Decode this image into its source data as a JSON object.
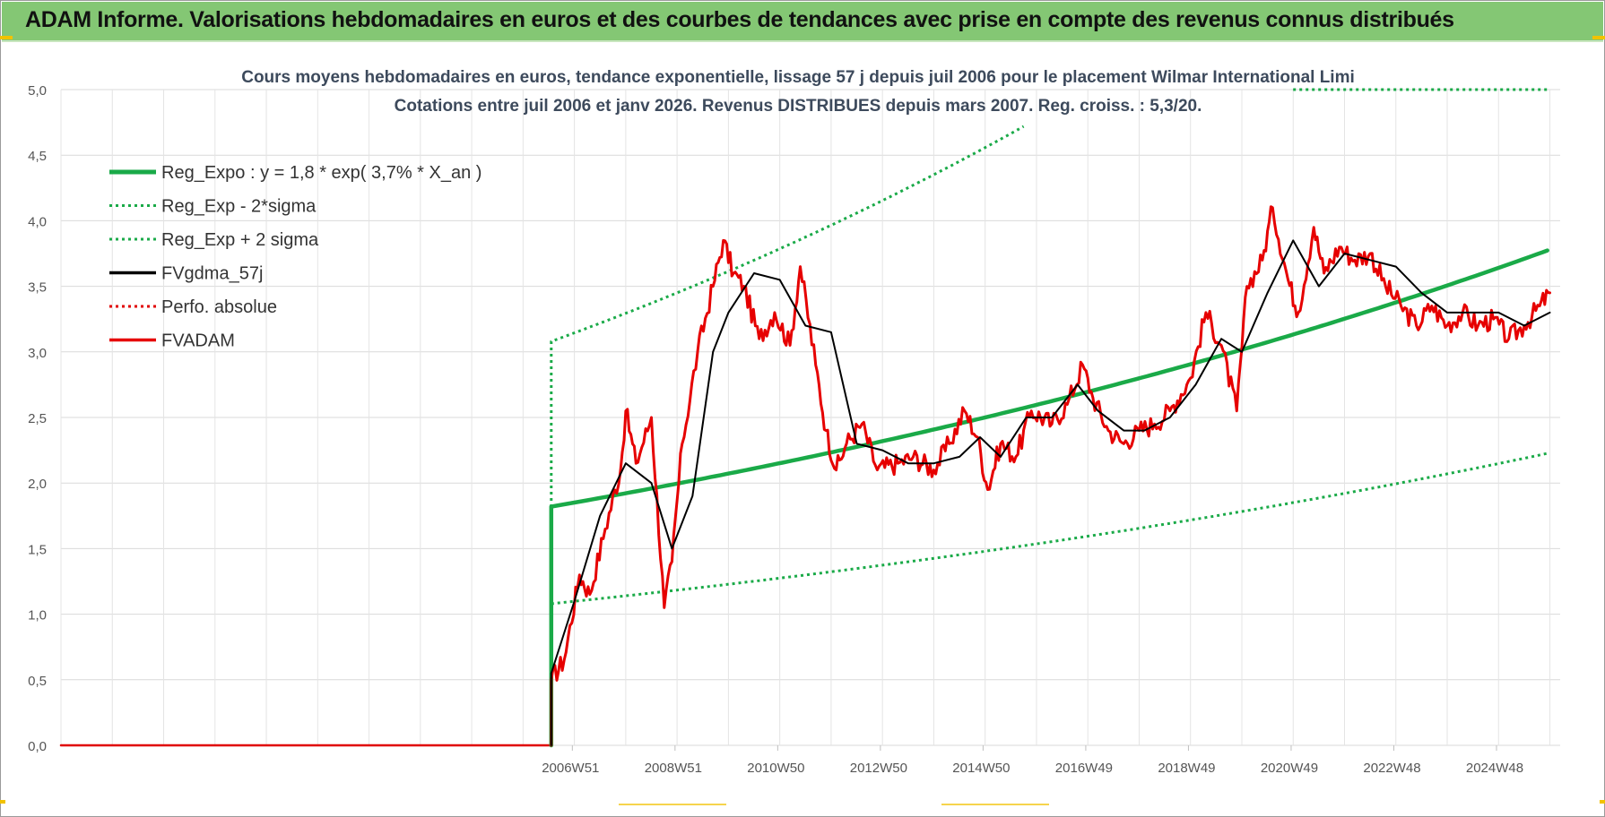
{
  "header": {
    "title": "ADAM Informe. Valorisations hebdomadaires en euros et des courbes de tendances avec prise en compte des revenus connus distribués"
  },
  "colors": {
    "header_bg": "#84c774",
    "reg_expo": "#1aaa48",
    "fvgdma": "#000000",
    "perfo": "#e00000",
    "fvadam": "#e60000",
    "accent_corner": "#f2c200"
  },
  "chart_data": {
    "type": "line",
    "title_line1": "Cours moyens hebdomadaires en euros, tendance exponentielle, lissage 57 j depuis juil 2006 pour le placement Wilmar International Limi",
    "title_line2": "Cotations entre juil 2006 et janv 2026. Revenus DISTRIBUES depuis mars 2007. Reg. croiss. : 5,3/20.",
    "xlabel": "",
    "ylabel": "",
    "ylim": [
      0,
      5
    ],
    "y_ticks": [
      "0,0",
      "0,5",
      "1,0",
      "1,5",
      "2,0",
      "2,5",
      "3,0",
      "3,5",
      "4,0",
      "4,5",
      "5,0"
    ],
    "x_tick_labels": [
      {
        "label": "2006W51",
        "year": 2006.96
      },
      {
        "label": "2008W51",
        "year": 2008.96
      },
      {
        "label": "2010W50",
        "year": 2010.96
      },
      {
        "label": "2012W50",
        "year": 2012.96
      },
      {
        "label": "2014W50",
        "year": 2014.96
      },
      {
        "label": "2016W49",
        "year": 2016.96
      },
      {
        "label": "2018W49",
        "year": 2018.96
      },
      {
        "label": "2020W49",
        "year": 2020.96
      },
      {
        "label": "2022W48",
        "year": 2022.96
      },
      {
        "label": "2024W48",
        "year": 2024.96
      }
    ],
    "x_range_years": [
      1997.0,
      2026.2
    ],
    "start_year": 2006.55,
    "grid": true,
    "legend_position": "top-left",
    "legend": [
      {
        "name": "Reg_Expo : y = 1,8 * exp( 3,7% *  X_an )",
        "style": "solid",
        "color": "#1aaa48"
      },
      {
        "name": "Reg_Exp - 2*sigma",
        "style": "dotted",
        "color": "#1aaa48"
      },
      {
        "name": "Reg_Exp + 2 sigma",
        "style": "dotted",
        "color": "#1aaa48"
      },
      {
        "name": "FVgdma_57j",
        "style": "solid",
        "color": "#000000"
      },
      {
        "name": "Perfo. absolue",
        "style": "dotted",
        "color": "#e00000"
      },
      {
        "name": "FVADAM",
        "style": "solid",
        "color": "#e60000"
      }
    ],
    "series": [
      {
        "name": "Reg_Expo : y = 1,8 * exp( 3,7% *  X_an )",
        "x": [
          2006.55,
          2026.0
        ],
        "y": [
          1.82,
          3.78
        ],
        "growth": "exponential"
      },
      {
        "name": "Reg_Exp - 2*sigma",
        "x": [
          2006.55,
          2026.0
        ],
        "y": [
          1.08,
          2.23
        ],
        "growth": "exponential"
      },
      {
        "name": "Reg_Exp + 2 sigma",
        "x": [
          2006.55,
          2015.8
        ],
        "y": [
          3.08,
          4.73
        ],
        "growth": "exponential",
        "clip_value": 5.0,
        "clip_x": [
          2021.0,
          2026.0
        ]
      },
      {
        "name": "FVgdma_57j",
        "x": [
          2006.55,
          2007.0,
          2007.5,
          2008.0,
          2008.5,
          2008.9,
          2009.3,
          2009.7,
          2010.0,
          2010.5,
          2011.0,
          2011.5,
          2012.0,
          2012.5,
          2013.0,
          2013.5,
          2014.0,
          2014.5,
          2014.9,
          2015.3,
          2015.8,
          2016.3,
          2016.8,
          2017.2,
          2017.7,
          2018.1,
          2018.6,
          2019.1,
          2019.6,
          2020.0,
          2020.5,
          2021.0,
          2021.5,
          2022.0,
          2022.5,
          2023.0,
          2023.5,
          2024.0,
          2024.5,
          2025.0,
          2025.5,
          2026.0
        ],
        "y": [
          0.55,
          1.1,
          1.75,
          2.15,
          2.0,
          1.5,
          1.9,
          3.0,
          3.3,
          3.6,
          3.55,
          3.2,
          3.15,
          2.3,
          2.25,
          2.15,
          2.15,
          2.2,
          2.35,
          2.2,
          2.5,
          2.5,
          2.75,
          2.55,
          2.4,
          2.4,
          2.5,
          2.75,
          3.1,
          3.0,
          3.45,
          3.85,
          3.5,
          3.75,
          3.7,
          3.65,
          3.45,
          3.3,
          3.3,
          3.3,
          3.2,
          3.3
        ]
      },
      {
        "name": "Perfo. absolue",
        "x": [
          1997.0,
          2006.55
        ],
        "y": [
          0.0,
          0.0
        ]
      },
      {
        "name": "FVADAM",
        "x": [
          2006.55,
          2006.8,
          2007.1,
          2007.3,
          2007.6,
          2007.9,
          2008.0,
          2008.2,
          2008.5,
          2008.75,
          2008.9,
          2009.1,
          2009.4,
          2009.7,
          2009.9,
          2010.1,
          2010.3,
          2010.6,
          2010.9,
          2011.2,
          2011.4,
          2011.7,
          2011.9,
          2012.1,
          2012.3,
          2012.6,
          2012.9,
          2013.3,
          2013.6,
          2014.0,
          2014.3,
          2014.6,
          2014.85,
          2015.05,
          2015.3,
          2015.6,
          2015.9,
          2016.3,
          2016.6,
          2016.9,
          2017.1,
          2017.4,
          2017.7,
          2018.0,
          2018.3,
          2018.6,
          2019.0,
          2019.3,
          2019.6,
          2019.9,
          2020.1,
          2020.4,
          2020.6,
          2020.9,
          2021.1,
          2021.4,
          2021.6,
          2021.9,
          2022.2,
          2022.5,
          2022.8,
          2023.1,
          2023.4,
          2023.7,
          2024.0,
          2024.3,
          2024.6,
          2024.9,
          2025.2,
          2025.5,
          2025.8,
          2026.0
        ],
        "y": [
          0.5,
          0.65,
          1.3,
          1.15,
          1.65,
          2.1,
          2.55,
          2.15,
          2.5,
          1.05,
          1.4,
          2.3,
          3.0,
          3.5,
          3.85,
          3.6,
          3.5,
          3.1,
          3.3,
          3.05,
          3.65,
          2.9,
          2.4,
          2.1,
          2.3,
          2.45,
          2.1,
          2.15,
          2.2,
          2.1,
          2.3,
          2.55,
          2.35,
          1.95,
          2.3,
          2.2,
          2.55,
          2.45,
          2.6,
          2.9,
          2.65,
          2.4,
          2.3,
          2.4,
          2.45,
          2.55,
          2.8,
          3.3,
          3.05,
          2.55,
          3.5,
          3.7,
          4.1,
          3.55,
          3.3,
          3.95,
          3.6,
          3.8,
          3.7,
          3.75,
          3.5,
          3.35,
          3.2,
          3.35,
          3.2,
          3.3,
          3.2,
          3.25,
          3.1,
          3.2,
          3.35,
          3.45
        ]
      }
    ]
  }
}
